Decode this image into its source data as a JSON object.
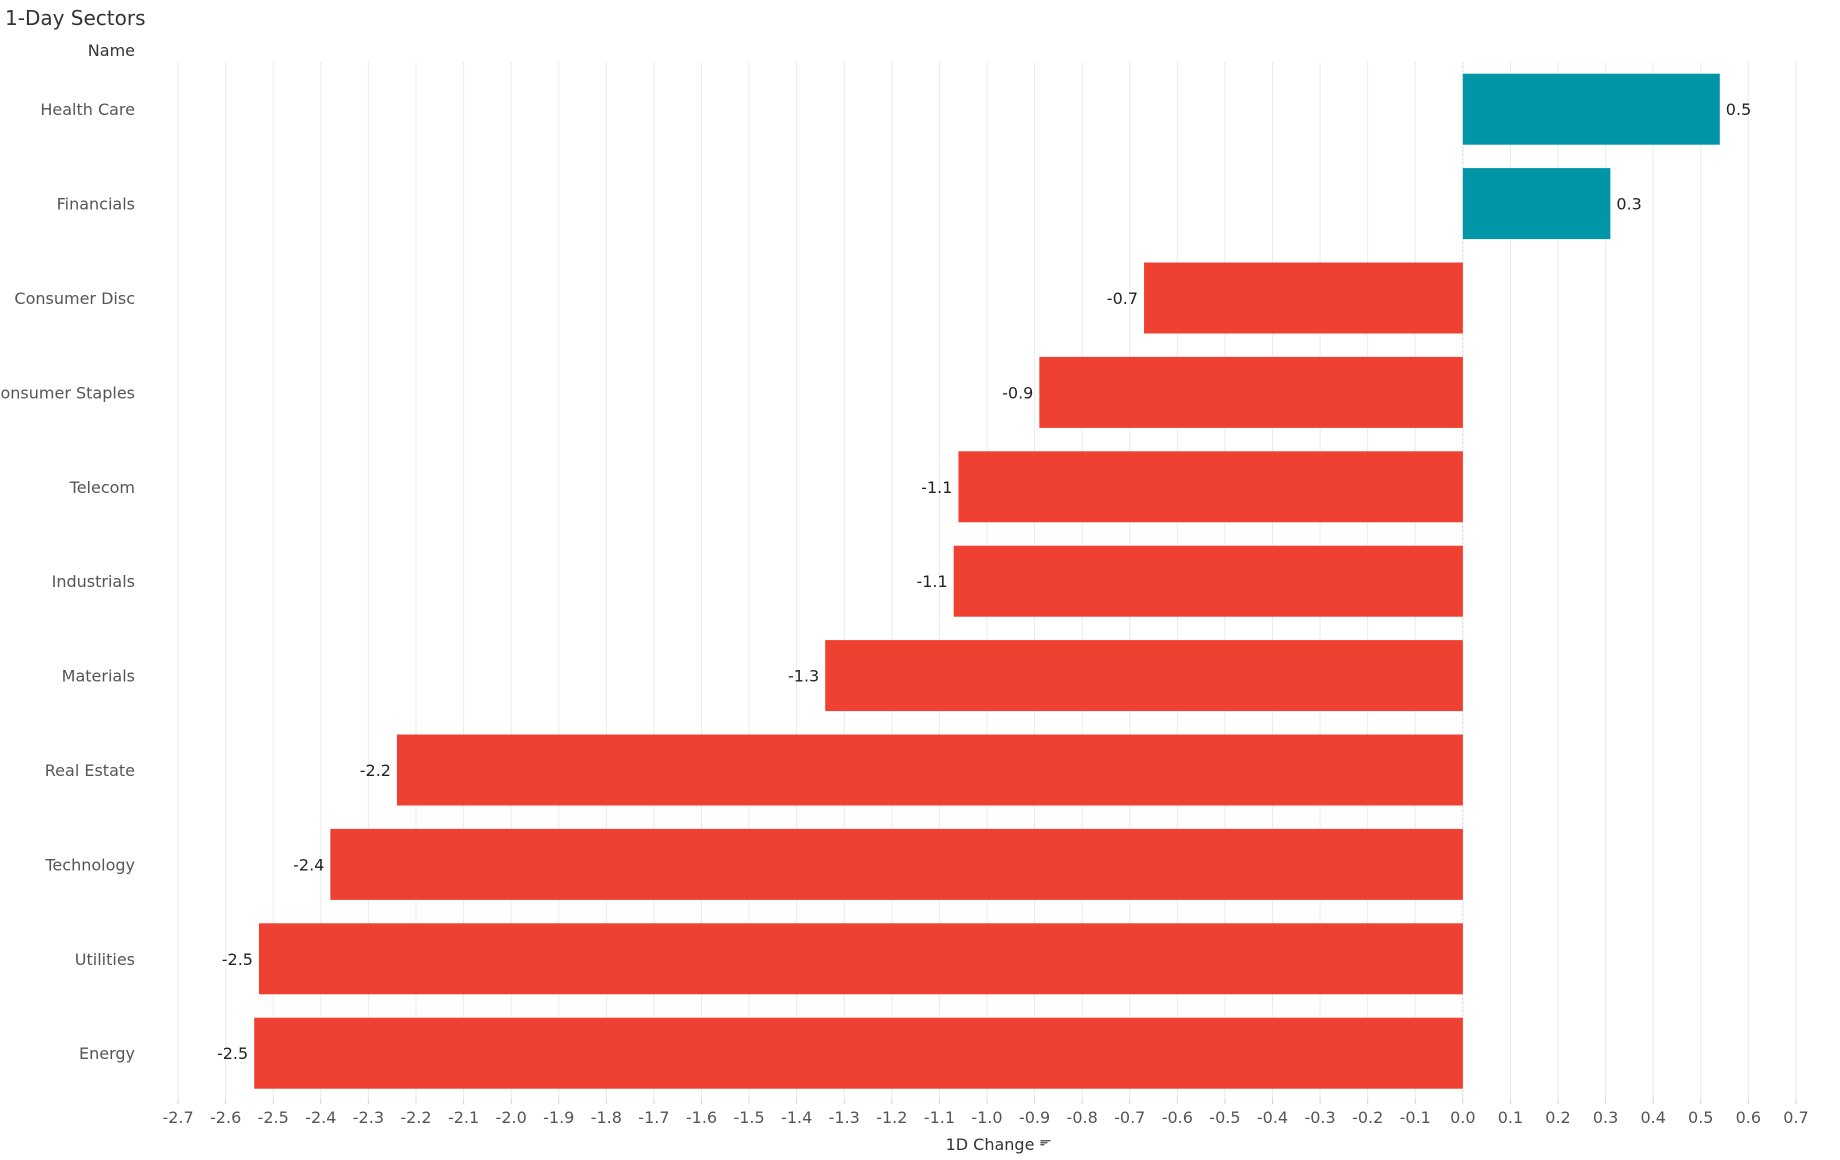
{
  "chart_data": {
    "type": "bar",
    "orientation": "horizontal",
    "title": "1-Day Sectors",
    "category_field_label": "Name",
    "xlabel": "1D Change",
    "xlim": [
      -2.78,
      0.78
    ],
    "xticks": [
      "-2.7",
      "-2.6",
      "-2.5",
      "-2.4",
      "-2.3",
      "-2.2",
      "-2.1",
      "-2.0",
      "-1.9",
      "-1.8",
      "-1.7",
      "-1.6",
      "-1.5",
      "-1.4",
      "-1.3",
      "-1.2",
      "-1.1",
      "-1.0",
      "-0.9",
      "-0.8",
      "-0.7",
      "-0.6",
      "-0.5",
      "-0.4",
      "-0.3",
      "-0.2",
      "-0.1",
      "0.0",
      "0.1",
      "0.2",
      "0.3",
      "0.4",
      "0.5",
      "0.6",
      "0.7"
    ],
    "grid": true,
    "sort_indicator": "descending",
    "categories": [
      "Health Care",
      "Financials",
      "Consumer Disc",
      "Consumer Staples",
      "Telecom",
      "Industrials",
      "Materials",
      "Real Estate",
      "Technology",
      "Utilities",
      "Energy"
    ],
    "values": [
      0.54,
      0.31,
      -0.67,
      -0.89,
      -1.06,
      -1.07,
      -1.34,
      -2.24,
      -2.38,
      -2.53,
      -2.54
    ],
    "value_labels": [
      "0.5",
      "0.3",
      "-0.7",
      "-0.9",
      "-1.1",
      "-1.1",
      "-1.3",
      "-2.2",
      "-2.4",
      "-2.5",
      "-2.5"
    ],
    "colors": {
      "positive": "#0096a8",
      "negative": "#ef4132"
    }
  }
}
